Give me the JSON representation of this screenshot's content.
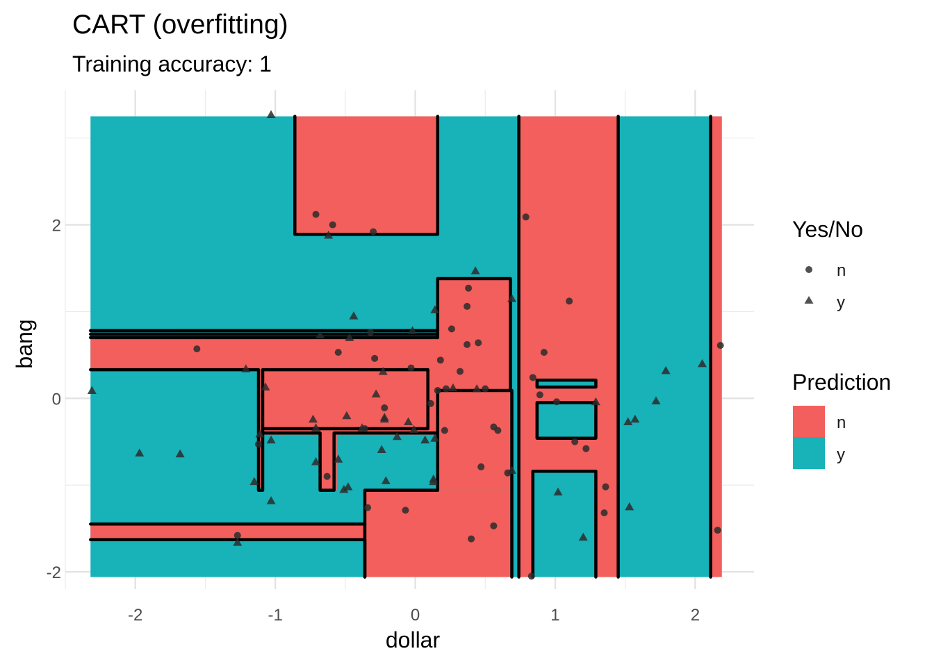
{
  "chart_data": {
    "type": "scatter",
    "title": "CART (overfitting)",
    "subtitle": "Training accuracy: 1",
    "xlabel": "dollar",
    "ylabel": "bang",
    "xlim": [
      -2.5,
      2.42
    ],
    "ylim": [
      -2.2,
      3.55
    ],
    "xticks": [
      -2,
      -1,
      0,
      1,
      2
    ],
    "yticks": [
      -2,
      0,
      2
    ],
    "grid": true,
    "legend_position": "right",
    "colors": {
      "n": "#F25F5C",
      "y": "#18B2B9"
    },
    "legends": {
      "shape": {
        "title": "Yes/No",
        "items": [
          {
            "label": "n",
            "shape": "circle"
          },
          {
            "label": "y",
            "shape": "triangle"
          }
        ]
      },
      "fill": {
        "title": "Prediction",
        "items": [
          {
            "label": "n",
            "color": "#F25F5C"
          },
          {
            "label": "y",
            "color": "#18B2B9"
          }
        ]
      }
    },
    "region_extent": {
      "x": [
        -2.32,
        2.19
      ],
      "y": [
        -2.06,
        3.25
      ]
    },
    "prediction_regions_n": [
      {
        "x": [
          -0.86,
          0.16
        ],
        "y": [
          1.89,
          3.25
        ]
      },
      {
        "x": [
          -2.32,
          0.16
        ],
        "y": [
          0.34,
          0.69
        ]
      },
      {
        "x": [
          -1.12,
          -1.09
        ],
        "y": [
          -1.03,
          0.34
        ]
      },
      {
        "x": [
          -1.09,
          0.09
        ],
        "y": [
          -0.35,
          0.34
        ]
      },
      {
        "x": [
          -2.32,
          -0.36
        ],
        "y": [
          -1.62,
          -1.45
        ]
      },
      {
        "x": [
          -0.36,
          0.74
        ],
        "y": [
          -2.06,
          -1.06
        ]
      },
      {
        "x": [
          0.16,
          0.74
        ],
        "y": [
          -1.06,
          1.38
        ]
      },
      {
        "x": [
          0.09,
          0.16
        ],
        "y": [
          -0.4,
          0.35
        ]
      },
      {
        "x": [
          -0.67,
          -0.58
        ],
        "y": [
          -1.06,
          -0.4
        ]
      },
      {
        "x": [
          -0.58,
          -0.56
        ],
        "y": [
          -1.06,
          -0.4
        ]
      },
      {
        "x": [
          -1.12,
          0.16
        ],
        "y": [
          -0.42,
          -0.35
        ]
      },
      {
        "x": [
          0.74,
          1.45
        ],
        "y": [
          -2.06,
          3.25
        ]
      },
      {
        "x": [
          2.11,
          2.19
        ],
        "y": [
          -2.06,
          3.25
        ]
      }
    ],
    "prediction_regions_y": [
      {
        "x": [
          0.84,
          1.29
        ],
        "y": [
          -2.06,
          -0.84
        ]
      },
      {
        "x": [
          0.87,
          1.29
        ],
        "y": [
          -0.46,
          -0.04
        ]
      },
      {
        "x": [
          0.87,
          1.29
        ],
        "y": [
          0.13,
          0.21
        ]
      },
      {
        "x": [
          1.45,
          2.11
        ],
        "y": [
          -2.06,
          3.25
        ]
      },
      {
        "x": [
          0.69,
          0.74
        ],
        "y": [
          -2.06,
          3.25
        ]
      }
    ],
    "boundaries": [
      [
        [
          -0.86,
          3.25
        ],
        [
          -0.86,
          1.89
        ],
        [
          0.16,
          1.89
        ],
        [
          0.16,
          3.25
        ]
      ],
      [
        [
          0.74,
          3.25
        ],
        [
          0.74,
          -2.06
        ]
      ],
      [
        [
          0.69,
          -2.06
        ],
        [
          0.69,
          0.09
        ]
      ],
      [
        [
          1.45,
          3.25
        ],
        [
          1.45,
          -2.06
        ]
      ],
      [
        [
          2.11,
          3.25
        ],
        [
          2.11,
          -2.06
        ]
      ],
      [
        [
          -2.32,
          0.78
        ],
        [
          0.16,
          0.78
        ]
      ],
      [
        [
          -2.32,
          0.74
        ],
        [
          0.16,
          0.74
        ]
      ],
      [
        [
          -2.32,
          0.7
        ],
        [
          0.16,
          0.7
        ]
      ],
      [
        [
          0.16,
          0.7
        ],
        [
          0.16,
          1.38
        ],
        [
          0.68,
          1.38
        ],
        [
          0.68,
          0.09
        ],
        [
          0.16,
          0.09
        ],
        [
          0.16,
          -1.06
        ],
        [
          -0.36,
          -1.06
        ],
        [
          -0.36,
          -2.06
        ]
      ],
      [
        [
          -2.32,
          0.33
        ],
        [
          -1.12,
          0.33
        ],
        [
          -1.12,
          -1.06
        ],
        [
          -1.09,
          -1.06
        ],
        [
          -1.09,
          0.33
        ],
        [
          0.09,
          0.33
        ],
        [
          0.09,
          -0.35
        ],
        [
          -1.09,
          -0.35
        ]
      ],
      [
        [
          -1.09,
          -0.4
        ],
        [
          -0.68,
          -0.4
        ],
        [
          -0.68,
          -1.06
        ],
        [
          -0.58,
          -1.06
        ],
        [
          -0.58,
          -0.4
        ],
        [
          0.16,
          -0.4
        ]
      ],
      [
        [
          -2.32,
          -1.45
        ],
        [
          -0.36,
          -1.45
        ]
      ],
      [
        [
          -2.32,
          -1.63
        ],
        [
          -0.36,
          -1.63
        ],
        [
          -0.36,
          -2.06
        ]
      ],
      [
        [
          0.84,
          -2.06
        ],
        [
          0.84,
          -0.84
        ],
        [
          1.29,
          -0.84
        ],
        [
          1.29,
          -2.06
        ]
      ],
      [
        [
          0.87,
          -0.46
        ],
        [
          0.87,
          -0.05
        ],
        [
          1.29,
          -0.05
        ],
        [
          1.29,
          -0.46
        ],
        [
          0.87,
          -0.46
        ]
      ],
      [
        [
          0.87,
          0.13
        ],
        [
          0.87,
          0.21
        ],
        [
          1.29,
          0.21
        ],
        [
          1.29,
          0.13
        ],
        [
          0.87,
          0.13
        ]
      ]
    ],
    "series": [
      {
        "name": "n",
        "shape": "circle",
        "points": [
          [
            -0.71,
            2.12
          ],
          [
            -0.59,
            2.0
          ],
          [
            -0.3,
            1.92
          ],
          [
            0.79,
            2.09
          ],
          [
            1.1,
            1.12
          ],
          [
            0.38,
            1.27
          ],
          [
            0.37,
            1.06
          ],
          [
            0.26,
            0.8
          ],
          [
            0.45,
            0.64
          ],
          [
            0.37,
            0.62
          ],
          [
            0.18,
            0.44
          ],
          [
            -1.56,
            0.57
          ],
          [
            -0.55,
            0.53
          ],
          [
            -0.29,
            0.46
          ],
          [
            -0.32,
            0.76
          ],
          [
            -0.03,
            0.35
          ],
          [
            0.32,
            0.31
          ],
          [
            0.22,
            0.11
          ],
          [
            0.16,
            0.09
          ],
          [
            0.5,
            0.11
          ],
          [
            0.11,
            -0.06
          ],
          [
            -0.22,
            -0.11
          ],
          [
            -0.36,
            -0.35
          ],
          [
            0.21,
            -0.37
          ],
          [
            0.56,
            -0.33
          ],
          [
            0.59,
            -0.37
          ],
          [
            -0.63,
            -0.9
          ],
          [
            0.47,
            -0.79
          ],
          [
            0.66,
            -0.86
          ],
          [
            -0.34,
            -1.26
          ],
          [
            -0.07,
            -1.29
          ],
          [
            0.4,
            -1.62
          ],
          [
            0.56,
            -1.47
          ],
          [
            -1.27,
            -1.58
          ],
          [
            0.83,
            -2.05
          ],
          [
            1.01,
            -0.04
          ],
          [
            0.89,
            0.04
          ],
          [
            0.92,
            0.53
          ],
          [
            0.84,
            0.24
          ],
          [
            1.14,
            -0.5
          ],
          [
            1.22,
            -0.58
          ],
          [
            1.36,
            -1.02
          ],
          [
            1.35,
            -1.32
          ],
          [
            2.18,
            0.61
          ],
          [
            2.16,
            -1.52
          ],
          [
            -1.12,
            -0.53
          ]
        ]
      },
      {
        "name": "y",
        "shape": "triangle",
        "points": [
          [
            -1.03,
            3.27
          ],
          [
            -0.62,
            1.88
          ],
          [
            0.43,
            1.47
          ],
          [
            0.14,
            1.02
          ],
          [
            -0.44,
            0.95
          ],
          [
            -0.02,
            0.78
          ],
          [
            -0.68,
            0.73
          ],
          [
            -0.47,
            0.7
          ],
          [
            -1.21,
            0.34
          ],
          [
            -1.07,
            0.13
          ],
          [
            -0.23,
            0.31
          ],
          [
            -0.28,
            0.05
          ],
          [
            0.27,
            0.12
          ],
          [
            0.44,
            0.11
          ],
          [
            -2.31,
            0.09
          ],
          [
            -0.49,
            -0.2
          ],
          [
            -0.22,
            -0.22
          ],
          [
            -0.22,
            -0.24
          ],
          [
            -0.73,
            -0.24
          ],
          [
            -0.05,
            -0.27
          ],
          [
            -0.71,
            -0.34
          ],
          [
            -0.38,
            -0.34
          ],
          [
            -0.01,
            -0.36
          ],
          [
            -1.11,
            -0.41
          ],
          [
            -1.03,
            -0.48
          ],
          [
            -0.13,
            -0.44
          ],
          [
            0.07,
            -0.48
          ],
          [
            0.14,
            -0.46
          ],
          [
            -0.24,
            -0.59
          ],
          [
            -1.97,
            -0.63
          ],
          [
            -1.68,
            -0.64
          ],
          [
            -0.71,
            -0.73
          ],
          [
            -0.55,
            -0.7
          ],
          [
            0.69,
            -0.83
          ],
          [
            -0.48,
            -1.02
          ],
          [
            0.13,
            -0.96
          ],
          [
            -0.21,
            -0.95
          ],
          [
            -1.15,
            -0.96
          ],
          [
            -0.51,
            -1.05
          ],
          [
            -1.03,
            -1.18
          ],
          [
            -1.27,
            -1.66
          ],
          [
            1.02,
            -1.08
          ],
          [
            1.2,
            -1.6
          ],
          [
            1.52,
            -0.27
          ],
          [
            1.57,
            -0.24
          ],
          [
            1.72,
            -0.03
          ],
          [
            1.79,
            0.32
          ],
          [
            2.05,
            0.4
          ],
          [
            1.29,
            -0.04
          ],
          [
            1.53,
            -1.25
          ],
          [
            0.69,
            1.15
          ],
          [
            0.13,
            -0.93
          ]
        ]
      }
    ]
  }
}
